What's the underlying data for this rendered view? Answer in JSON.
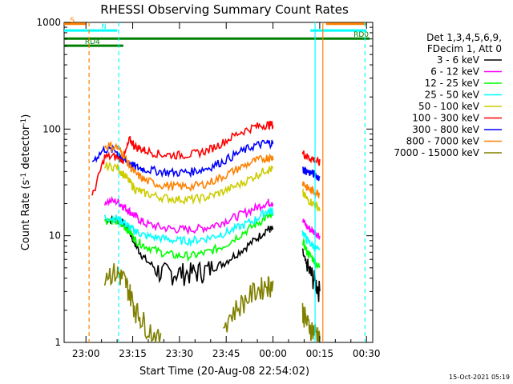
{
  "chart_data": {
    "type": "line",
    "title": "RHESSI Observing Summary Count Rates",
    "xlabel": "Start Time (20-Aug-08 22:54:02)",
    "ylabel": "Count Rate (s",
    "ylabel_sup1": "-1",
    "ylabel_mid": " detector",
    "ylabel_sup2": "-1",
    "ylabel_end": ")",
    "x_unit": "minutes since 22:54:02",
    "xlim": [
      -1,
      98
    ],
    "ylim": [
      1,
      1000
    ],
    "y_scale": "log",
    "x_ticks": [
      {
        "v": 6,
        "label": "23:00"
      },
      {
        "v": 21,
        "label": "23:15"
      },
      {
        "v": 36,
        "label": "23:30"
      },
      {
        "v": 51,
        "label": "23:45"
      },
      {
        "v": 66,
        "label": "00:00"
      },
      {
        "v": 81,
        "label": "00:15"
      },
      {
        "v": 96,
        "label": "00:30"
      }
    ],
    "y_ticks": [
      {
        "v": 1,
        "label": "1"
      },
      {
        "v": 10,
        "label": "10"
      },
      {
        "v": 100,
        "label": "100"
      },
      {
        "v": 1000,
        "label": "1000"
      }
    ],
    "legend_header": [
      "Det 1,3,4,5,6,9,",
      "FDecim 1, Att 0"
    ],
    "legend_position": "right",
    "flag_labels": {
      "s": "S",
      "n": "N",
      "rd0": "RD0",
      "rd4": "RD4"
    },
    "flags": [
      {
        "label_key": "s",
        "color": "#ff8000",
        "level": 970,
        "segments": [
          [
            -1,
            6
          ],
          [
            83,
            96
          ]
        ]
      },
      {
        "label_key": "n",
        "color": "#00ffff",
        "level": 840,
        "segments": [
          [
            -1,
            16
          ],
          [
            78,
            96
          ]
        ]
      },
      {
        "label_key": "rd0",
        "color": "#008000",
        "level": 705,
        "segments": [
          [
            -1,
            97
          ]
        ]
      },
      {
        "label_key": "rd4",
        "color": "#008000",
        "level": 605,
        "segments": [
          [
            -1,
            18
          ]
        ]
      }
    ],
    "vlines": [
      {
        "x": 7,
        "color": "#ff8000",
        "dash": true
      },
      {
        "x": 16.5,
        "color": "#00ffff",
        "dash": true
      },
      {
        "x": 79.5,
        "color": "#00ffff",
        "dash": false
      },
      {
        "x": 82,
        "color": "#ff8000",
        "dash": false
      },
      {
        "x": 95.5,
        "color": "#00ffff",
        "dash": true
      }
    ],
    "data_gaps": [
      [
        67,
        76
      ]
    ],
    "x_sample": [
      8,
      12,
      16,
      18,
      20,
      22,
      25,
      30,
      35,
      40,
      45,
      50,
      55,
      60,
      64,
      66,
      75.5,
      77,
      79,
      81
    ],
    "series": [
      {
        "name": "3 - 6 keV",
        "color": "#000000",
        "values": [
          null,
          14,
          14,
          13,
          11,
          8,
          6,
          4.5,
          4.5,
          4.5,
          4.8,
          5.5,
          7,
          9,
          11.5,
          11.5,
          7,
          5,
          4,
          3
        ]
      },
      {
        "name": "6 - 12 keV",
        "color": "#ff00ff",
        "values": [
          null,
          21,
          21,
          19,
          17,
          15,
          13,
          12,
          11.5,
          11.5,
          12,
          13.5,
          15.5,
          18,
          20.5,
          20.5,
          14,
          12,
          11,
          10
        ]
      },
      {
        "name": "12 - 25 keV",
        "color": "#00ff00",
        "values": [
          null,
          14,
          13.5,
          12.5,
          11,
          9,
          8,
          7,
          6.5,
          6.5,
          7,
          8,
          10,
          12.5,
          15,
          15,
          9,
          7,
          6,
          5
        ]
      },
      {
        "name": "25 - 50 keV",
        "color": "#00ffff",
        "values": [
          null,
          15,
          14.5,
          13.5,
          12,
          11,
          10,
          9.5,
          9,
          9,
          9.5,
          10.5,
          12,
          14,
          17,
          17,
          11,
          9,
          8,
          7
        ]
      },
      {
        "name": "50 - 100 keV",
        "color": "#cccc00",
        "values": [
          null,
          45,
          44,
          38,
          32,
          27,
          25,
          23,
          22,
          22,
          23,
          26,
          30,
          36,
          42,
          42,
          25,
          22,
          20,
          18
        ]
      },
      {
        "name": "100 - 300 keV",
        "color": "#ff0000",
        "values": [
          23,
          55,
          55,
          52,
          80,
          68,
          63,
          58,
          57,
          58,
          63,
          75,
          92,
          105,
          110,
          110,
          60,
          55,
          52,
          48
        ]
      },
      {
        "name": "300 - 800 keV",
        "color": "#0000ff",
        "values": [
          50,
          65,
          62,
          52,
          48,
          44,
          42,
          40,
          39,
          40,
          43,
          50,
          60,
          70,
          74,
          74,
          42,
          40,
          38,
          35
        ]
      },
      {
        "name": "800 - 7000 keV",
        "color": "#ff8000",
        "values": [
          null,
          70,
          68,
          58,
          45,
          38,
          33,
          30,
          29,
          29,
          31,
          36,
          43,
          50,
          54,
          54,
          32,
          28,
          26,
          25
        ]
      },
      {
        "name": "7000 - 15000 keV",
        "color": "#808000",
        "values": [
          null,
          4.5,
          4.5,
          4,
          3,
          2,
          1.5,
          1,
          null,
          null,
          null,
          1.5,
          2.2,
          3,
          3.5,
          3.5,
          2,
          1.5,
          1.3,
          1.2
        ]
      }
    ]
  },
  "footer": {
    "timestamp": "15-Oct-2021 05:19"
  }
}
